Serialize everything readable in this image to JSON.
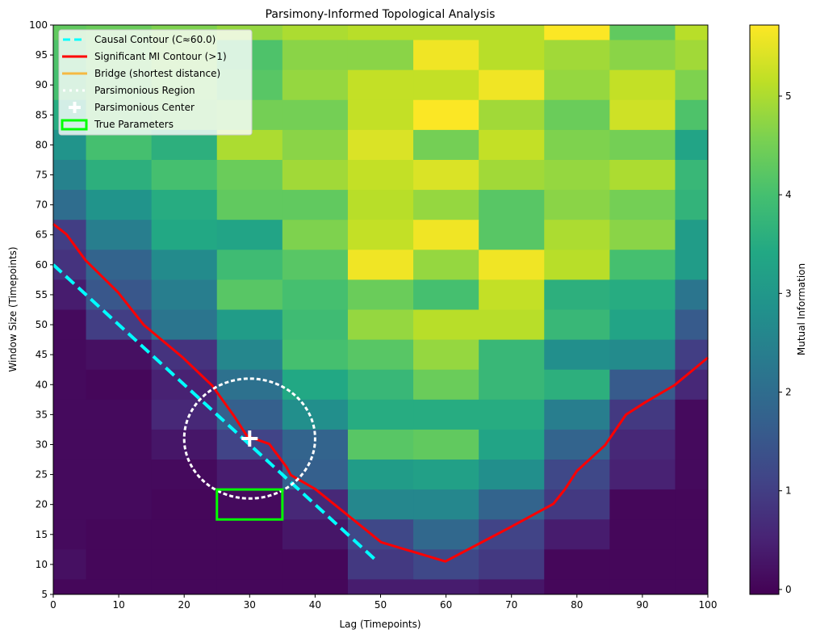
{
  "chart_data": {
    "type": "heatmap",
    "title": "Parsimony-Informed Topological Analysis",
    "xlabel": "Lag (Timepoints)",
    "ylabel": "Window Size (Timepoints)",
    "colorbar_label": "Mutual Information",
    "colormap": "viridis",
    "xlim": [
      0,
      100
    ],
    "ylim": [
      5,
      100
    ],
    "clim": [
      -0.05,
      5.72
    ],
    "x_ticks": [
      0,
      10,
      20,
      30,
      40,
      50,
      60,
      70,
      80,
      90,
      100
    ],
    "y_ticks": [
      5,
      10,
      15,
      20,
      25,
      30,
      35,
      40,
      45,
      50,
      55,
      60,
      65,
      70,
      75,
      80,
      85,
      90,
      95,
      100
    ],
    "colorbar_ticks": [
      0,
      1,
      2,
      3,
      4,
      5
    ],
    "grid": false,
    "x": [
      0,
      10,
      20,
      30,
      40,
      50,
      60,
      70,
      80,
      90,
      100
    ],
    "y": [
      100,
      95,
      90,
      85,
      80,
      75,
      70,
      65,
      60,
      55,
      50,
      45,
      40,
      35,
      30,
      25,
      20,
      15,
      10,
      5
    ],
    "z": [
      [
        4.3,
        4.4,
        4.6,
        4.8,
        5.0,
        5.1,
        5.1,
        5.1,
        5.7,
        4.3,
        5.1
      ],
      [
        4.1,
        4.4,
        4.6,
        4.1,
        4.7,
        4.7,
        5.6,
        5.1,
        4.9,
        4.7,
        4.9
      ],
      [
        4.0,
        4.3,
        4.5,
        4.2,
        4.8,
        5.2,
        5.2,
        5.6,
        4.8,
        5.2,
        4.6
      ],
      [
        3.5,
        4.3,
        4.4,
        4.5,
        4.5,
        5.2,
        5.7,
        4.9,
        4.4,
        5.3,
        4.1
      ],
      [
        2.9,
        4.0,
        3.6,
        5.0,
        4.7,
        5.4,
        4.5,
        5.2,
        4.6,
        4.5,
        3.3
      ],
      [
        2.5,
        3.6,
        4.0,
        4.4,
        4.9,
        5.2,
        5.4,
        4.9,
        4.8,
        5.0,
        3.8
      ],
      [
        2.0,
        2.9,
        3.5,
        4.3,
        4.3,
        5.1,
        4.8,
        4.2,
        4.7,
        4.5,
        3.7
      ],
      [
        1.0,
        2.4,
        3.4,
        3.3,
        4.6,
        5.2,
        5.6,
        4.2,
        5.0,
        4.7,
        3.1
      ],
      [
        0.8,
        1.8,
        2.7,
        3.9,
        4.2,
        5.6,
        4.8,
        5.6,
        5.1,
        4.0,
        3.1
      ],
      [
        0.4,
        1.5,
        2.4,
        4.2,
        4.0,
        4.4,
        4.0,
        5.2,
        3.6,
        3.5,
        2.2
      ],
      [
        0.1,
        1.0,
        2.2,
        3.1,
        3.9,
        4.8,
        5.1,
        5.1,
        3.8,
        3.3,
        1.6
      ],
      [
        0.1,
        0.2,
        0.8,
        2.6,
        4.0,
        4.2,
        4.8,
        3.8,
        2.8,
        2.7,
        1.0
      ],
      [
        0.1,
        0.05,
        0.5,
        2.1,
        3.4,
        3.8,
        4.4,
        3.8,
        3.6,
        1.6,
        0.6
      ],
      [
        0.1,
        0.1,
        0.6,
        1.7,
        2.8,
        3.5,
        3.5,
        3.5,
        2.4,
        0.9,
        0.1
      ],
      [
        0.1,
        0.1,
        0.3,
        1.1,
        1.8,
        4.2,
        4.3,
        3.3,
        1.8,
        0.6,
        0.1
      ],
      [
        0.1,
        0.1,
        0.1,
        0.4,
        1.7,
        3.1,
        3.2,
        2.8,
        1.2,
        0.5,
        0.1
      ],
      [
        0.1,
        0.1,
        0.05,
        0.1,
        0.6,
        2.6,
        2.6,
        1.8,
        0.9,
        0.05,
        0.05
      ],
      [
        0.1,
        0.05,
        0.05,
        0.05,
        0.3,
        1.2,
        1.9,
        1.1,
        0.4,
        0.05,
        0.05
      ],
      [
        0.2,
        0.05,
        0.05,
        0.05,
        0.05,
        0.9,
        1.2,
        0.9,
        0.05,
        0.05,
        0.05
      ],
      [
        0.05,
        0.05,
        0.05,
        0.05,
        0.05,
        0.4,
        0.4,
        0.3,
        0.05,
        0.05,
        0.05
      ]
    ],
    "overlays": {
      "causal_contour": {
        "label": "Causal Contour (C≈60.0)",
        "color": "#00ffff",
        "style": "dashed",
        "points": [
          [
            0,
            60
          ],
          [
            49.5,
            10.5
          ]
        ]
      },
      "significant_mi_contour": {
        "label": "Significant MI Contour (>1)",
        "color": "#ff0000",
        "style": "solid",
        "points": [
          [
            0,
            66.8
          ],
          [
            2,
            65.1
          ],
          [
            4.9,
            60.8
          ],
          [
            9.9,
            55.4
          ],
          [
            13.8,
            50.0
          ],
          [
            19.7,
            44.6
          ],
          [
            24.3,
            39.8
          ],
          [
            27.6,
            34.8
          ],
          [
            29.6,
            31.4
          ],
          [
            33.0,
            30.1
          ],
          [
            35.6,
            26.3
          ],
          [
            36.3,
            24.9
          ],
          [
            40.0,
            22.6
          ],
          [
            44.9,
            18.3
          ],
          [
            50.1,
            13.7
          ],
          [
            59.9,
            10.5
          ],
          [
            65.8,
            13.9
          ],
          [
            69.8,
            16.2
          ],
          [
            76.4,
            20.1
          ],
          [
            78.2,
            22.6
          ],
          [
            80.0,
            25.6
          ],
          [
            84.3,
            29.9
          ],
          [
            87.5,
            35.0
          ],
          [
            90.5,
            37.1
          ],
          [
            94.9,
            39.9
          ],
          [
            100,
            44.5
          ]
        ]
      },
      "bridge": {
        "label": "Bridge (shortest distance)",
        "color": "#f5b942",
        "style": "solid",
        "points": []
      },
      "parsimonious_region": {
        "label": "Parsimonious Region",
        "color": "#ffffff",
        "style": "dotted",
        "center": [
          30,
          31
        ],
        "radius_x": 10,
        "radius_y": 10
      },
      "parsimonious_center": {
        "label": "Parsimonious Center",
        "color": "#ffffff",
        "marker": "+",
        "point": [
          30,
          31
        ]
      },
      "true_parameters": {
        "label": "True Parameters",
        "color": "#00ff00",
        "rect": {
          "x0": 25,
          "x1": 35,
          "y0": 17.5,
          "y1": 22.5
        }
      }
    },
    "legend": {
      "position": "upper left",
      "entries": [
        "Causal Contour (C≈60.0)",
        "Significant MI Contour (>1)",
        "Bridge (shortest distance)",
        "Parsimonious Region",
        "Parsimonious Center",
        "True Parameters"
      ]
    }
  }
}
